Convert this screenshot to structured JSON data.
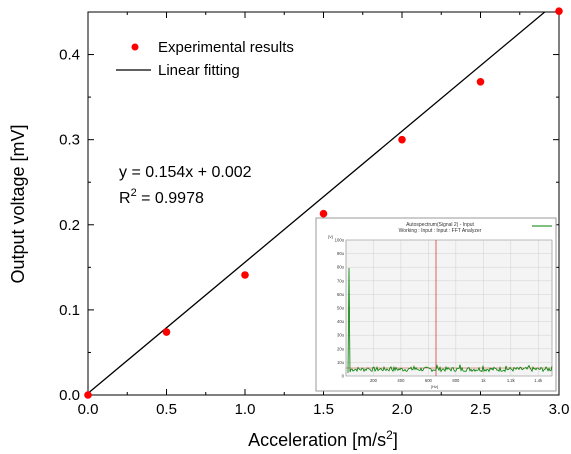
{
  "chart_data": [
    {
      "type": "scatter",
      "xlabel_main": "Acceleration [m/s",
      "xlabel_sup": "2",
      "xlabel_end": "]",
      "ylabel": "Output voltage [mV]",
      "xlim": [
        0,
        3.0
      ],
      "ylim": [
        0,
        0.45
      ],
      "x_ticks": [
        "0.0",
        "0.5",
        "1.0",
        "1.5",
        "2.0",
        "2.5",
        "3.0"
      ],
      "y_ticks": [
        "0.0",
        "0.1",
        "0.2",
        "0.3",
        "0.4"
      ],
      "series": [
        {
          "name": "Experimental results",
          "kind": "scatter",
          "color": "#ff0000",
          "x": [
            0.0,
            0.5,
            1.0,
            1.5,
            2.0,
            2.5,
            3.0
          ],
          "y": [
            0.0,
            0.074,
            0.141,
            0.213,
            0.3,
            0.368,
            0.451
          ]
        },
        {
          "name": "Linear fitting",
          "kind": "line",
          "color": "#000000",
          "slope": 0.154,
          "intercept": 0.002
        }
      ],
      "annotations": {
        "equation": "y = 0.154x + 0.002",
        "r2_prefix": "R",
        "r2_sup": "2",
        "r2_suffix": " = 0.9978"
      },
      "legend_position": "top-left",
      "grid": false
    },
    {
      "type": "line",
      "title_line1": "Autospectrum(Signal 2) - Input",
      "title_line2": "Working : Input : Input : FFT Analyzer",
      "y_unit": "[V]",
      "x_unit": "[Hz]",
      "y_ticks": [
        "100u",
        "90u",
        "80u",
        "70u",
        "60u",
        "50u",
        "40u",
        "30u",
        "20u",
        "10u",
        "0"
      ],
      "x_ticks": [
        "200",
        "400",
        "600",
        "800",
        "1k",
        "1.2k",
        "1.4k"
      ],
      "grid": true,
      "trace_color": "#008000",
      "marker_color": "#cc0000"
    }
  ]
}
